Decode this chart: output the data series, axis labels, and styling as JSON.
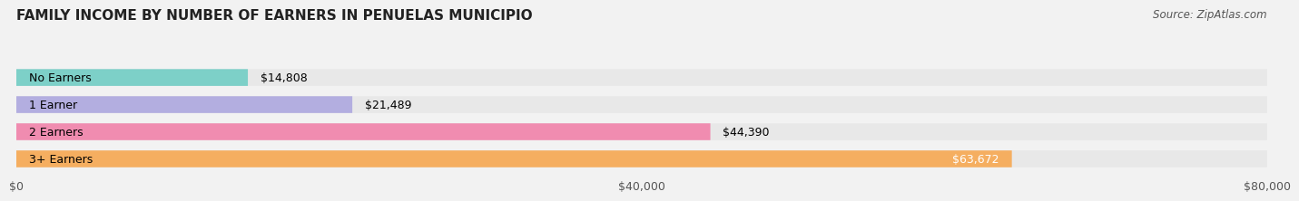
{
  "title": "FAMILY INCOME BY NUMBER OF EARNERS IN PENUELAS MUNICIPIO",
  "source": "Source: ZipAtlas.com",
  "categories": [
    "No Earners",
    "1 Earner",
    "2 Earners",
    "3+ Earners"
  ],
  "values": [
    14808,
    21489,
    44390,
    63672
  ],
  "bar_colors": [
    "#7dd0c8",
    "#b3aee0",
    "#f08cb0",
    "#f5ae60"
  ],
  "label_colors": [
    "#000000",
    "#000000",
    "#000000",
    "#ffffff"
  ],
  "xlim": [
    0,
    80000
  ],
  "xtick_values": [
    0,
    40000,
    80000
  ],
  "xtick_labels": [
    "$0",
    "$40,000",
    "$80,000"
  ],
  "title_fontsize": 11,
  "source_fontsize": 8.5,
  "bar_label_fontsize": 9,
  "cat_label_fontsize": 9,
  "background_color": "#f2f2f2",
  "bar_background_color": "#e8e8e8"
}
